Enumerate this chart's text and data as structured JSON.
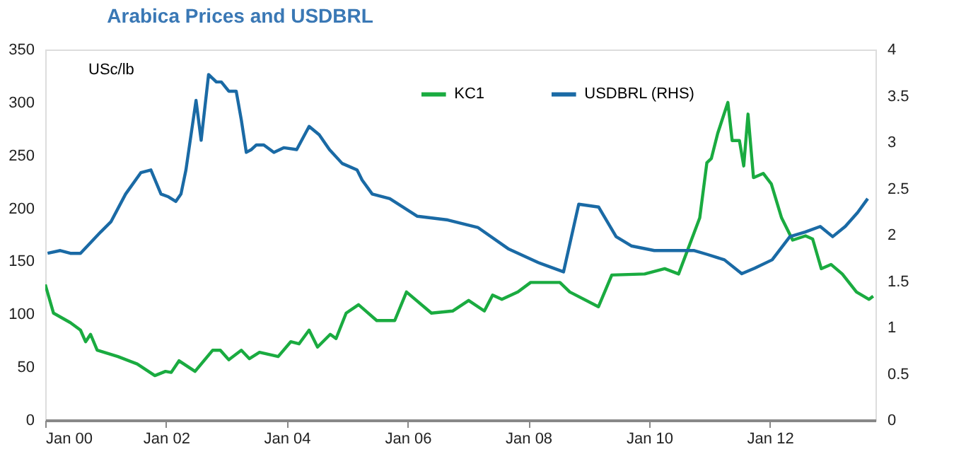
{
  "chart_data": {
    "type": "line",
    "title": "Arabica Prices and USDBRL",
    "ylabel": "USc/lb",
    "xlim": [
      "2000-01-01",
      "2013-10-01"
    ],
    "xticks": [
      {
        "value": "2000-01-01",
        "label": "Jan 00"
      },
      {
        "value": "2002-01-01",
        "label": "Jan 02"
      },
      {
        "value": "2004-01-01",
        "label": "Jan 04"
      },
      {
        "value": "2006-01-01",
        "label": "Jan 06"
      },
      {
        "value": "2008-01-01",
        "label": "Jan 08"
      },
      {
        "value": "2010-01-01",
        "label": "Jan 10"
      },
      {
        "value": "2012-01-01",
        "label": "Jan 12"
      }
    ],
    "ylim": [
      0,
      350
    ],
    "yticks": [
      0,
      50,
      100,
      150,
      200,
      250,
      300,
      350
    ],
    "y2lim": [
      0,
      4
    ],
    "y2ticks": [
      0,
      0.5,
      1,
      1.5,
      2,
      2.5,
      3,
      3.5,
      4
    ],
    "legend": "top",
    "grid": false,
    "marker": "none",
    "line_style": "solid",
    "series": [
      {
        "name": "KC1",
        "color": "#1aab40",
        "x": [
          "2000-01-01",
          "2000-02-20",
          "2000-06-01",
          "2000-08-01",
          "2000-09-01",
          "2000-10-01",
          "2000-11-10",
          "2001-03-15",
          "2001-07-10",
          "2001-10-25",
          "2001-12-28",
          "2002-02-01",
          "2002-03-20",
          "2002-06-25",
          "2002-10-10",
          "2002-11-25",
          "2003-01-15",
          "2003-04-01",
          "2003-05-20",
          "2003-07-20",
          "2003-11-10",
          "2004-01-25",
          "2004-03-15",
          "2004-05-15",
          "2004-07-05",
          "2004-09-20",
          "2004-10-25",
          "2004-12-25",
          "2005-03-10",
          "2005-06-28",
          "2005-10-15",
          "2005-12-25",
          "2006-05-25",
          "2006-09-30",
          "2007-01-05",
          "2007-04-10",
          "2007-05-30",
          "2007-07-25",
          "2007-10-30",
          "2008-01-15",
          "2008-07-10",
          "2008-09-08",
          "2009-02-28",
          "2009-05-20",
          "2009-12-05",
          "2010-04-05",
          "2010-06-28",
          "2010-11-03",
          "2010-12-16",
          "2011-01-12",
          "2011-02-20",
          "2011-04-22",
          "2011-05-18",
          "2011-07-01",
          "2011-07-27",
          "2011-08-22",
          "2011-09-24",
          "2011-11-22",
          "2012-01-10",
          "2012-03-12",
          "2012-05-18",
          "2012-08-04",
          "2012-09-16",
          "2012-11-07",
          "2013-01-05",
          "2013-03-14",
          "2013-06-08",
          "2013-08-23",
          "2013-09-17"
        ],
        "values": [
          128,
          101,
          92,
          85,
          74,
          81,
          66,
          60,
          53,
          42,
          46,
          45,
          56,
          46,
          66,
          66,
          57,
          66,
          58,
          64,
          60,
          74,
          72,
          85,
          69,
          81,
          77,
          101,
          109,
          94,
          94,
          121,
          101,
          103,
          113,
          103,
          118,
          114,
          121,
          130,
          130,
          121,
          107,
          137,
          138,
          143,
          138,
          191,
          243,
          247,
          271,
          300,
          264,
          264,
          240,
          289,
          229,
          233,
          223,
          191,
          170,
          174,
          171,
          143,
          147,
          138,
          121,
          114,
          117
        ]
      },
      {
        "name": "USDBRL (RHS)",
        "color": "#1a6aa5",
        "axis": "y2",
        "x": [
          "2000-01-15",
          "2000-04-01",
          "2000-06-01",
          "2000-08-01",
          "2000-12-01",
          "2001-02-01",
          "2001-05-01",
          "2001-08-01",
          "2001-10-01",
          "2001-12-01",
          "2002-01-15",
          "2002-03-01",
          "2002-04-01",
          "2002-05-01",
          "2002-07-01",
          "2002-08-01",
          "2002-09-15",
          "2002-11-01",
          "2002-12-01",
          "2003-01-15",
          "2003-03-01",
          "2003-04-01",
          "2003-05-01",
          "2003-06-01",
          "2003-07-01",
          "2003-08-15",
          "2003-10-15",
          "2003-12-15",
          "2004-03-01",
          "2004-05-15",
          "2004-07-15",
          "2004-09-15",
          "2004-12-01",
          "2005-03-01",
          "2005-04-01",
          "2005-06-01",
          "2005-09-15",
          "2006-03-01",
          "2006-09-01",
          "2007-03-01",
          "2007-09-01",
          "2008-03-01",
          "2008-08-01",
          "2008-11-01",
          "2009-03-01",
          "2009-06-15",
          "2009-09-15",
          "2010-02-01",
          "2010-06-15",
          "2010-10-01",
          "2010-12-15",
          "2011-04-01",
          "2011-07-15",
          "2011-10-01",
          "2012-01-15",
          "2012-05-01",
          "2012-08-01",
          "2012-11-01",
          "2013-01-15",
          "2013-04-01",
          "2013-06-15",
          "2013-08-15"
        ],
        "values": [
          1.8,
          1.83,
          1.8,
          1.8,
          2.03,
          2.14,
          2.44,
          2.67,
          2.7,
          2.44,
          2.41,
          2.36,
          2.44,
          2.7,
          3.45,
          3.02,
          3.73,
          3.65,
          3.65,
          3.55,
          3.55,
          3.24,
          2.89,
          2.92,
          2.97,
          2.97,
          2.89,
          2.94,
          2.92,
          3.17,
          3.08,
          2.92,
          2.77,
          2.7,
          2.59,
          2.44,
          2.39,
          2.2,
          2.16,
          2.08,
          1.85,
          1.7,
          1.6,
          2.33,
          2.3,
          1.98,
          1.88,
          1.83,
          1.83,
          1.83,
          1.79,
          1.73,
          1.58,
          1.64,
          1.73,
          1.98,
          2.03,
          2.09,
          1.98,
          2.09,
          2.24,
          2.39
        ]
      }
    ]
  }
}
